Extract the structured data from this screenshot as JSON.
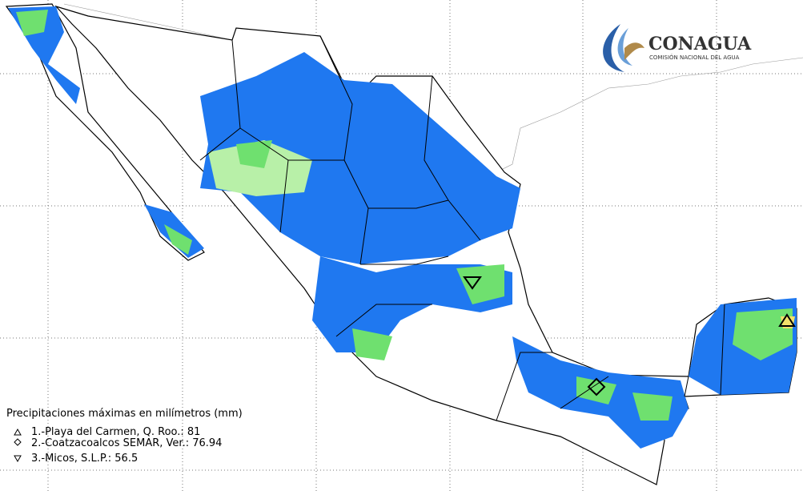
{
  "logo": {
    "name": "CONAGUA",
    "subtitle": "COMISIÓN NACIONAL DEL AGUA"
  },
  "legend": {
    "title": "Precipitaciones máximas en milímetros (mm)",
    "entries": [
      "1.-Playa del Carmen, Q. Roo.: 81",
      "2.-Coatzacoalcos SEMAR, Ver.: 76.94",
      "3.-Micos, S.L.P.: 56.5"
    ]
  }
}
